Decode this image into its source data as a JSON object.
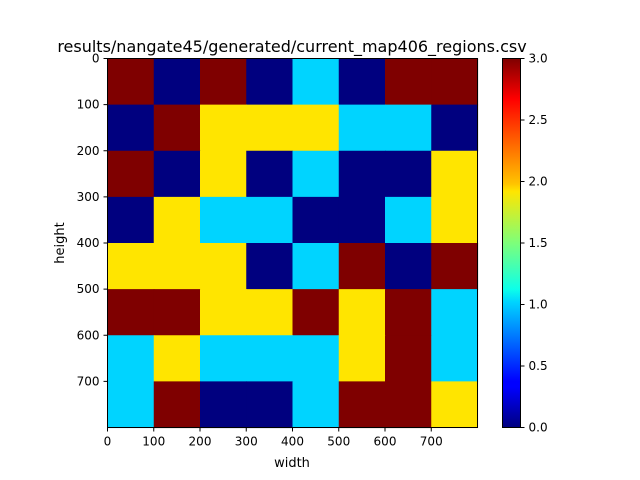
{
  "chart_data": {
    "type": "heatmap",
    "title": "results/nangate45/generated/current_map406_regions.csv",
    "xlabel": "width",
    "ylabel": "height",
    "x_ticks": [
      "0",
      "100",
      "200",
      "300",
      "400",
      "500",
      "600",
      "700"
    ],
    "y_ticks": [
      "0",
      "100",
      "200",
      "300",
      "400",
      "500",
      "600",
      "700"
    ],
    "xlim": [
      0,
      800
    ],
    "ylim": [
      800,
      0
    ],
    "cell_size": 100,
    "values": [
      [
        3,
        0,
        3,
        0,
        1,
        0,
        3,
        3
      ],
      [
        0,
        3,
        2,
        2,
        2,
        1,
        1,
        0
      ],
      [
        3,
        0,
        2,
        0,
        1,
        0,
        0,
        2
      ],
      [
        0,
        2,
        1,
        1,
        0,
        0,
        1,
        2
      ],
      [
        2,
        2,
        2,
        0,
        1,
        3,
        0,
        3
      ],
      [
        3,
        3,
        2,
        2,
        3,
        2,
        3,
        1
      ],
      [
        1,
        2,
        1,
        1,
        1,
        2,
        3,
        1
      ],
      [
        1,
        3,
        0,
        0,
        1,
        3,
        3,
        2
      ]
    ],
    "colormap": "jet",
    "colorbar": {
      "range": [
        0.0,
        3.0
      ],
      "ticks": [
        "0.0",
        "0.5",
        "1.0",
        "1.5",
        "2.0",
        "2.5",
        "3.0"
      ]
    },
    "colors": {
      "0": "#00007f",
      "1": "#00d4ff",
      "2": "#ffe500",
      "3": "#7f0000"
    },
    "grid": false
  }
}
